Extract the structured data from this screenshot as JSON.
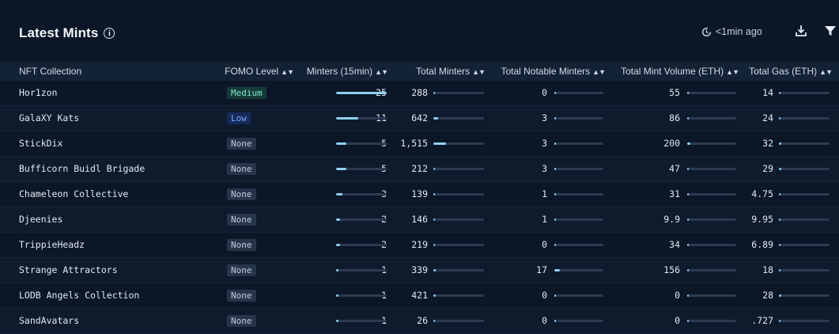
{
  "header": {
    "title": "Latest Mints",
    "updated": "<1min ago"
  },
  "columns": {
    "collection": "NFT Collection",
    "fomo": "FOMO Level",
    "minters15": "Minters (15min)",
    "total_minters": "Total Minters",
    "notable": "Total Notable Minters",
    "volume": "Total Mint Volume (ETH)",
    "gas": "Total Gas (ETH)"
  },
  "colors": {
    "background": "#0b1727",
    "header_row": "#132235",
    "bar_fill": "#8fd0f4",
    "bar_track": "#2b3b52",
    "fomo_medium": "#7fe7c4",
    "fomo_low": "#7aa8ff"
  },
  "icons": [
    "info-icon",
    "clock-refresh-icon",
    "download-icon",
    "filter-icon",
    "sort-icon"
  ],
  "rows": [
    {
      "name": "Hor1zon",
      "fomo": "Medium",
      "fomo_kind": "medium",
      "m15": "25",
      "m15_frac": 1.0,
      "tm": "288",
      "tm_frac": 0.03,
      "nm": "0",
      "nm_frac": 0.02,
      "vol": "55",
      "vol_frac": 0.03,
      "gas": "14",
      "gas_frac": 0.03
    },
    {
      "name": "GalaXY Kats",
      "fomo": "Low",
      "fomo_kind": "low",
      "m15": "11",
      "m15_frac": 0.44,
      "tm": "642",
      "tm_frac": 0.1,
      "nm": "3",
      "nm_frac": 0.03,
      "vol": "86",
      "vol_frac": 0.03,
      "gas": "24",
      "gas_frac": 0.03
    },
    {
      "name": "StickDix",
      "fomo": "None",
      "fomo_kind": "none",
      "m15": "5",
      "m15_frac": 0.2,
      "tm": "1,515",
      "tm_frac": 0.25,
      "nm": "3",
      "nm_frac": 0.03,
      "vol": "200",
      "vol_frac": 0.06,
      "gas": "32",
      "gas_frac": 0.05
    },
    {
      "name": "Bufficorn Buidl Brigade",
      "fomo": "None",
      "fomo_kind": "none",
      "m15": "5",
      "m15_frac": 0.2,
      "tm": "212",
      "tm_frac": 0.03,
      "nm": "3",
      "nm_frac": 0.03,
      "vol": "47",
      "vol_frac": 0.03,
      "gas": "29",
      "gas_frac": 0.05
    },
    {
      "name": "Chameleon Collective",
      "fomo": "None",
      "fomo_kind": "none",
      "m15": "3",
      "m15_frac": 0.12,
      "tm": "139",
      "tm_frac": 0.02,
      "nm": "1",
      "nm_frac": 0.02,
      "vol": "31",
      "vol_frac": 0.02,
      "gas": "4.75",
      "gas_frac": 0.02
    },
    {
      "name": "Djeenies",
      "fomo": "None",
      "fomo_kind": "none",
      "m15": "2",
      "m15_frac": 0.08,
      "tm": "146",
      "tm_frac": 0.02,
      "nm": "1",
      "nm_frac": 0.02,
      "vol": "9.9",
      "vol_frac": 0.01,
      "gas": "9.95",
      "gas_frac": 0.02
    },
    {
      "name": "TrippieHeadz",
      "fomo": "None",
      "fomo_kind": "none",
      "m15": "2",
      "m15_frac": 0.08,
      "tm": "219",
      "tm_frac": 0.03,
      "nm": "0",
      "nm_frac": 0.01,
      "vol": "34",
      "vol_frac": 0.02,
      "gas": "6.89",
      "gas_frac": 0.02
    },
    {
      "name": "Strange Attractors",
      "fomo": "None",
      "fomo_kind": "none",
      "m15": "1",
      "m15_frac": 0.04,
      "tm": "339",
      "tm_frac": 0.04,
      "nm": "17",
      "nm_frac": 0.12,
      "vol": "156",
      "vol_frac": 0.04,
      "gas": "18",
      "gas_frac": 0.03
    },
    {
      "name": "LODB Angels Collection",
      "fomo": "None",
      "fomo_kind": "none",
      "m15": "1",
      "m15_frac": 0.04,
      "tm": "421",
      "tm_frac": 0.05,
      "nm": "0",
      "nm_frac": 0.01,
      "vol": "0",
      "vol_frac": 0.0,
      "gas": "28",
      "gas_frac": 0.05
    },
    {
      "name": "SandAvatars",
      "fomo": "None",
      "fomo_kind": "none",
      "m15": "1",
      "m15_frac": 0.04,
      "tm": "26",
      "tm_frac": 0.01,
      "nm": "0",
      "nm_frac": 0.01,
      "vol": "0",
      "vol_frac": 0.0,
      "gas": ".727",
      "gas_frac": 0.01
    }
  ]
}
